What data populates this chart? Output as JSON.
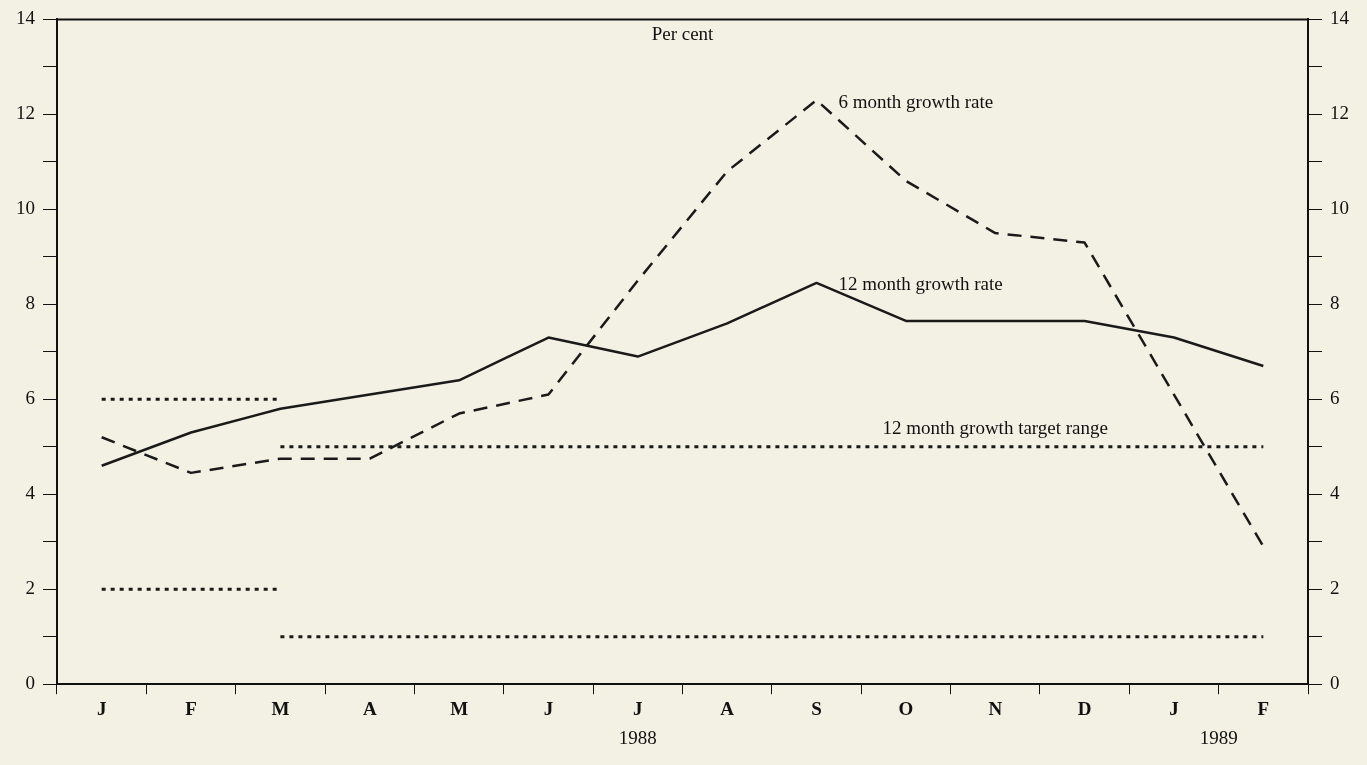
{
  "chart_data": {
    "type": "line",
    "xlabel": "1988",
    "categories": [
      "J",
      "F",
      "M",
      "A",
      "M",
      "J",
      "J",
      "A",
      "S",
      "O",
      "N",
      "D",
      "J",
      "F"
    ],
    "series": [
      {
        "name": "12 month growth rate",
        "color": "#1a1a1a",
        "line_style": "solid",
        "values": [
          4.6,
          5.3,
          5.8,
          6.1,
          6.4,
          7.3,
          6.9,
          7.6,
          8.45,
          7.65,
          7.65,
          7.65,
          7.3,
          6.7
        ]
      },
      {
        "name": "6 month growth rate",
        "color": "#1a1a1a",
        "line_style": "dashed",
        "values": [
          5.2,
          4.45,
          4.75,
          4.75,
          5.7,
          6.1,
          8.5,
          10.8,
          12.3,
          10.6,
          9.5,
          9.3,
          6.1,
          2.9
        ]
      },
      {
        "color": "#1a1a1a",
        "line_style": "dotted",
        "values": [
          6,
          6,
          6,
          null,
          null,
          null,
          null,
          null,
          null,
          null,
          null,
          null,
          null,
          null
        ]
      },
      {
        "color": "#1a1a1a",
        "line_style": "dotted",
        "values": [
          2,
          2,
          2,
          null,
          null,
          null,
          null,
          null,
          null,
          null,
          null,
          null,
          null,
          null
        ]
      },
      {
        "color": "#1a1a1a",
        "line_style": "dotted",
        "values": [
          null,
          null,
          5,
          5,
          5,
          5,
          5,
          5,
          5,
          5,
          5,
          5,
          5,
          5
        ]
      },
      {
        "color": "#1a1a1a",
        "line_style": "dotted",
        "values": [
          null,
          null,
          1,
          1,
          1,
          1,
          1,
          1,
          1,
          1,
          1,
          1,
          1,
          1
        ]
      }
    ],
    "annotations": [
      "Per cent",
      {
        "text": "12 month growth target range",
        "x": "N",
        "y": 5
      },
      "1989"
    ],
    "ylim": [
      0,
      14
    ],
    "yticks": [
      0,
      {
        "value": 1,
        "label": null
      },
      2,
      {
        "value": 3,
        "label": null
      },
      4,
      {
        "value": 5,
        "label": null
      },
      6,
      {
        "value": 7,
        "label": null
      },
      8,
      {
        "value": 9,
        "label": null
      },
      10,
      {
        "value": 11,
        "label": null
      },
      12,
      {
        "value": 13,
        "label": null
      },
      14
    ],
    "y2lim": [
      0,
      14
    ],
    "y2ticks": [
      0,
      {
        "value": 1,
        "label": null
      },
      2,
      {
        "value": 3,
        "label": null
      },
      4,
      {
        "value": 5,
        "label": null
      },
      6,
      {
        "value": 7,
        "label": null
      },
      8,
      {
        "value": 9,
        "label": null
      },
      10,
      {
        "value": 11,
        "label": null
      },
      12,
      {
        "value": 13,
        "label": null
      },
      14
    ],
    "grid": false,
    "legend": false,
    "marker": "none"
  }
}
